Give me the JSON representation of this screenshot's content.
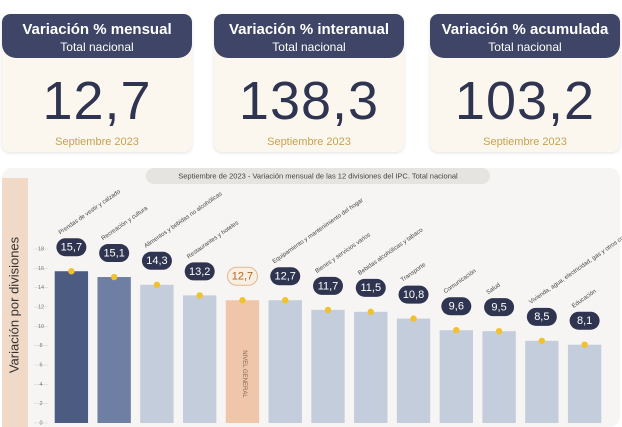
{
  "cards": [
    {
      "title": "Variación % mensual",
      "subtitle": "Total nacional",
      "value": "12,7",
      "period": "Septiembre 2023"
    },
    {
      "title": "Variación % interanual",
      "subtitle": "Total nacional",
      "value": "138,3",
      "period": "Septiembre 2023"
    },
    {
      "title": "Variación % acumulada",
      "subtitle": "Total nacional",
      "value": "103,2",
      "period": "Septiembre 2023"
    }
  ],
  "chart_data": {
    "type": "bar",
    "title": "Septiembre de 2023 - Variación mensual de las 12 divisiones del IPC. Total nacional",
    "y_label": "Variación por divisiones",
    "categories": [
      "Prendas de vestir y calzado",
      "Recreación y cultura",
      "Alimentos y bebidas no alcohólicas",
      "Restaurantes y hoteles",
      "NIVEL GENERAL",
      "Equipamiento y mantenimiento del hogar",
      "Bienes y servicios varios",
      "Bebidas alcohólicas y tabaco",
      "Transporte",
      "Comunicación",
      "Salud",
      "Vivienda, agua, electricidad, gas y otros combustibles",
      "Educación"
    ],
    "values": [
      15.7,
      15.1,
      14.3,
      13.2,
      12.7,
      12.7,
      11.7,
      11.5,
      10.8,
      9.6,
      9.5,
      8.5,
      8.1
    ],
    "value_labels": [
      "15,7",
      "15,1",
      "14,3",
      "13,2",
      "12,7",
      "12,7",
      "11,7",
      "11,5",
      "10,8",
      "9,6",
      "9,5",
      "8,5",
      "8,1"
    ],
    "colors": [
      "#4b5b82",
      "#6f7fa3",
      "#c3cddb",
      "#c3cddb",
      "#f0c6aa",
      "#c3cddb",
      "#c3cddb",
      "#c3cddb",
      "#c3cddb",
      "#c3cddb",
      "#c3cddb",
      "#c3cddb",
      "#c3cddb"
    ],
    "ylim": [
      0,
      18
    ],
    "yticks": [
      0,
      2,
      4,
      6,
      8,
      10,
      12,
      14,
      16,
      18
    ]
  }
}
